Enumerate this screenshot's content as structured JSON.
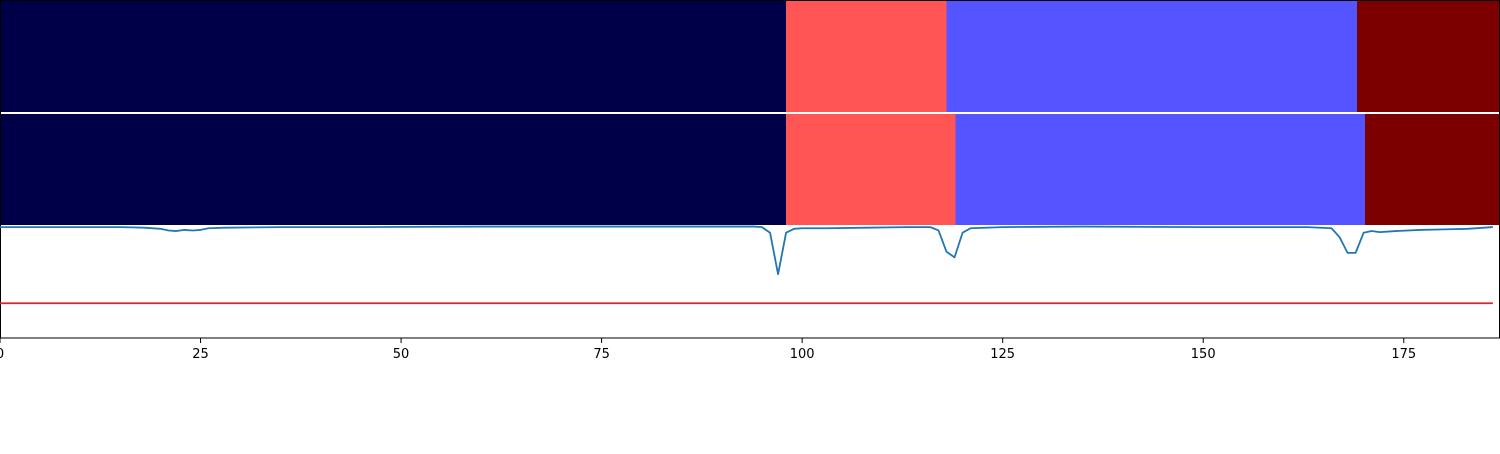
{
  "chart_data": [
    {
      "type": "heatmap",
      "panel": "segmentation-row-1",
      "segments": [
        {
          "start": 0,
          "end": 98,
          "color": "#000048"
        },
        {
          "start": 98,
          "end": 118,
          "color": "#ff5555"
        },
        {
          "start": 118,
          "end": 169.2,
          "color": "#5555ff"
        },
        {
          "start": 169.2,
          "end": 187,
          "color": "#7c0000"
        }
      ]
    },
    {
      "type": "heatmap",
      "panel": "segmentation-row-2",
      "segments": [
        {
          "start": 0,
          "end": 98,
          "color": "#000048"
        },
        {
          "start": 98,
          "end": 119.1,
          "color": "#ff5555"
        },
        {
          "start": 119.1,
          "end": 170.2,
          "color": "#5555ff"
        },
        {
          "start": 170.2,
          "end": 187,
          "color": "#7c0000"
        }
      ]
    },
    {
      "type": "line",
      "panel": "signal",
      "xlim": [
        0,
        187
      ],
      "ylim": [
        0,
        1
      ],
      "x_ticks": [
        0,
        25,
        50,
        75,
        100,
        125,
        150,
        175
      ],
      "grid": false,
      "series": [
        {
          "color": "#1f77b4",
          "points": [
            [
              0,
              0.99
            ],
            [
              5,
              0.99
            ],
            [
              10,
              0.99
            ],
            [
              15,
              0.99
            ],
            [
              18,
              0.985
            ],
            [
              20,
              0.975
            ],
            [
              21,
              0.96
            ],
            [
              22,
              0.955
            ],
            [
              23,
              0.965
            ],
            [
              24,
              0.96
            ],
            [
              25,
              0.965
            ],
            [
              26,
              0.98
            ],
            [
              28,
              0.985
            ],
            [
              35,
              0.99
            ],
            [
              45,
              0.99
            ],
            [
              60,
              0.995
            ],
            [
              75,
              0.995
            ],
            [
              85,
              0.995
            ],
            [
              94,
              0.995
            ],
            [
              95,
              0.99
            ],
            [
              96,
              0.94
            ],
            [
              97,
              0.57
            ],
            [
              98,
              0.94
            ],
            [
              99,
              0.975
            ],
            [
              100,
              0.98
            ],
            [
              103,
              0.98
            ],
            [
              108,
              0.985
            ],
            [
              113,
              0.99
            ],
            [
              116,
              0.99
            ],
            [
              117,
              0.96
            ],
            [
              118,
              0.77
            ],
            [
              119,
              0.72
            ],
            [
              120,
              0.94
            ],
            [
              121,
              0.98
            ],
            [
              125,
              0.99
            ],
            [
              135,
              0.995
            ],
            [
              150,
              0.99
            ],
            [
              163,
              0.99
            ],
            [
              166,
              0.98
            ],
            [
              167,
              0.9
            ],
            [
              168,
              0.76
            ],
            [
              169,
              0.76
            ],
            [
              170,
              0.94
            ],
            [
              171,
              0.955
            ],
            [
              172,
              0.945
            ],
            [
              174,
              0.955
            ],
            [
              177,
              0.965
            ],
            [
              180,
              0.97
            ],
            [
              183,
              0.975
            ],
            [
              185,
              0.985
            ],
            [
              186,
              0.99
            ]
          ]
        },
        {
          "color": "#d62728",
          "points": [
            [
              0,
              0.31
            ],
            [
              186,
              0.31
            ]
          ]
        }
      ]
    }
  ]
}
